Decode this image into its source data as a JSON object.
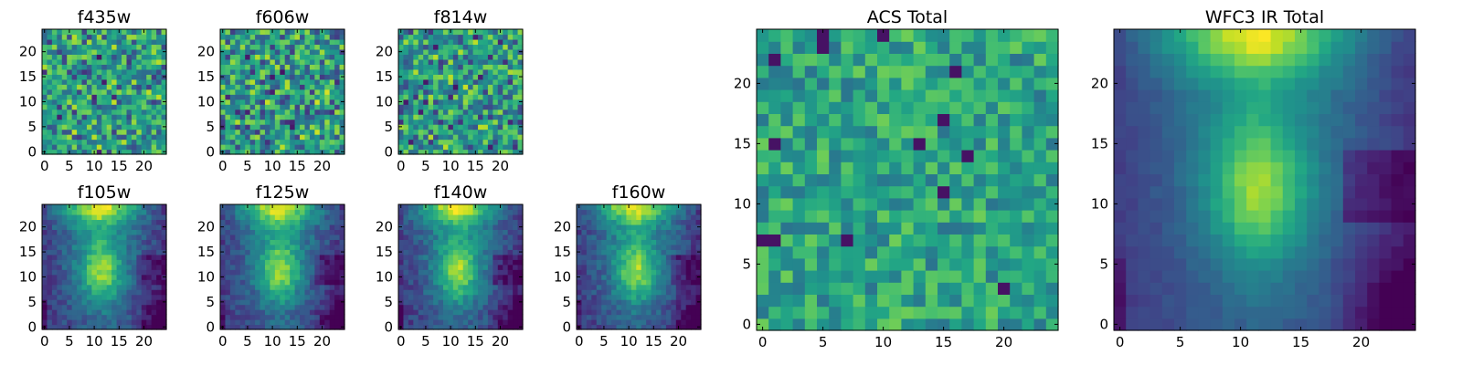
{
  "chart_data": {
    "type": "heatmap",
    "colormap": "viridis",
    "panels": [
      {
        "id": "f435w",
        "title": "f435w",
        "pattern": "noise",
        "seed": 435,
        "x_ticks": [
          0,
          5,
          10,
          15,
          20
        ],
        "y_ticks": [
          0,
          5,
          10,
          15,
          20
        ],
        "extent": [
          0,
          24
        ]
      },
      {
        "id": "f606w",
        "title": "f606w",
        "pattern": "noise",
        "seed": 606,
        "x_ticks": [
          0,
          5,
          10,
          15,
          20
        ],
        "y_ticks": [
          0,
          5,
          10,
          15,
          20
        ],
        "extent": [
          0,
          24
        ]
      },
      {
        "id": "f814w",
        "title": "f814w",
        "pattern": "noise",
        "seed": 814,
        "x_ticks": [
          0,
          5,
          10,
          15,
          20
        ],
        "y_ticks": [
          0,
          5,
          10,
          15,
          20
        ],
        "extent": [
          0,
          24
        ]
      },
      {
        "id": "f105w",
        "title": "f105w",
        "pattern": "galaxy",
        "seed": 105,
        "x_ticks": [
          0,
          5,
          10,
          15,
          20
        ],
        "y_ticks": [
          0,
          5,
          10,
          15,
          20
        ],
        "extent": [
          0,
          24
        ]
      },
      {
        "id": "f125w",
        "title": "f125w",
        "pattern": "galaxy",
        "seed": 125,
        "x_ticks": [
          0,
          5,
          10,
          15,
          20
        ],
        "y_ticks": [
          0,
          5,
          10,
          15,
          20
        ],
        "extent": [
          0,
          24
        ]
      },
      {
        "id": "f140w",
        "title": "f140w",
        "pattern": "galaxy",
        "seed": 140,
        "x_ticks": [
          0,
          5,
          10,
          15,
          20
        ],
        "y_ticks": [
          0,
          5,
          10,
          15,
          20
        ],
        "extent": [
          0,
          24
        ]
      },
      {
        "id": "f160w",
        "title": "f160w",
        "pattern": "galaxy",
        "seed": 160,
        "x_ticks": [
          0,
          5,
          10,
          15,
          20
        ],
        "y_ticks": [
          0,
          5,
          10,
          15,
          20
        ],
        "extent": [
          0,
          24
        ]
      },
      {
        "id": "acs-total",
        "title": "ACS Total",
        "pattern": "noise",
        "seed": 900,
        "x_ticks": [
          0,
          5,
          10,
          15,
          20
        ],
        "y_ticks": [
          0,
          5,
          10,
          15,
          20
        ],
        "extent": [
          0,
          24
        ]
      },
      {
        "id": "wfc3-ir-total",
        "title": "WFC3 IR Total",
        "pattern": "galaxy",
        "seed": 999,
        "x_ticks": [
          0,
          5,
          10,
          15,
          20
        ],
        "y_ticks": [
          0,
          5,
          10,
          15,
          20
        ],
        "extent": [
          0,
          24
        ]
      }
    ]
  }
}
